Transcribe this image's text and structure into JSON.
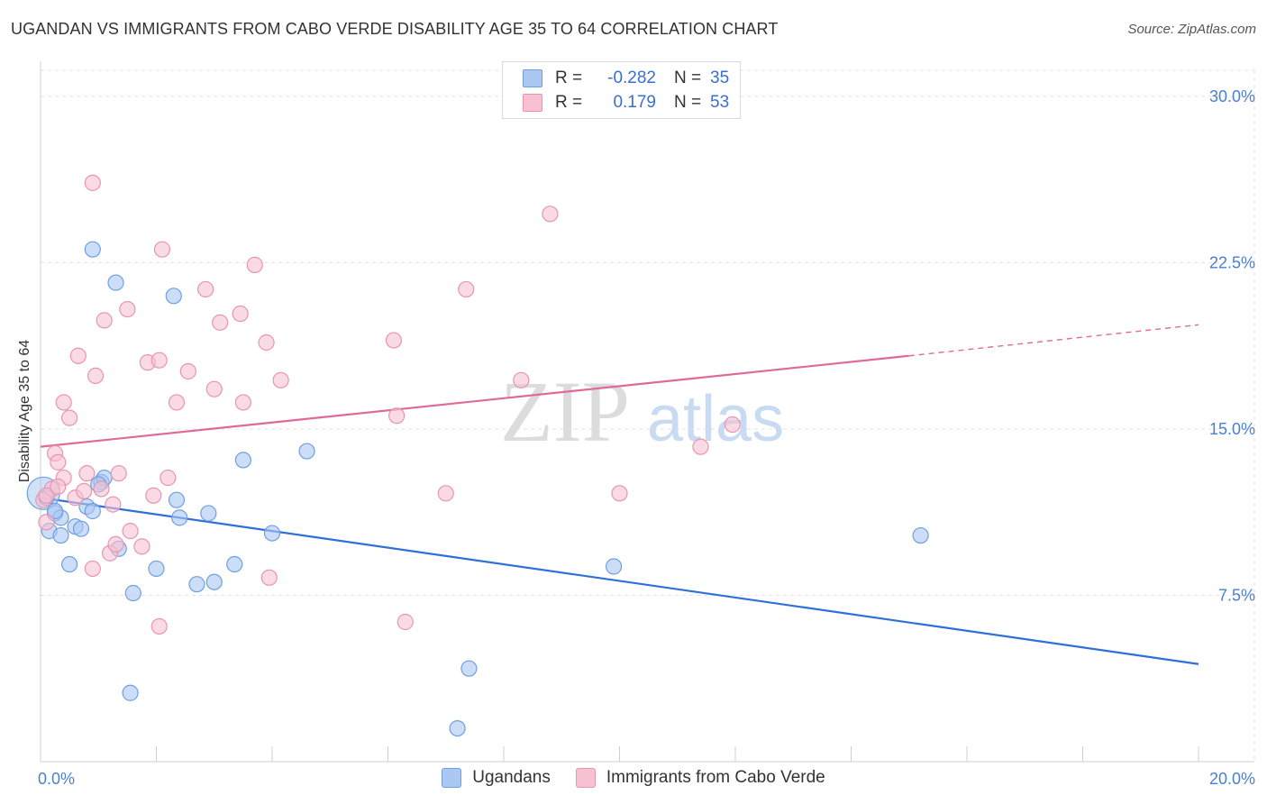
{
  "title": "UGANDAN VS IMMIGRANTS FROM CABO VERDE DISABILITY AGE 35 TO 64 CORRELATION CHART",
  "source": "Source: ZipAtlas.com",
  "watermark": {
    "zip": "ZIP",
    "atlas": "atlas"
  },
  "legend": {
    "rows": [
      {
        "r_label": "R =",
        "r_value": "-0.282",
        "n_label": "N =",
        "n_value": "35",
        "color": "#aac8f2",
        "border": "#6f9fe0"
      },
      {
        "r_label": "R =",
        "r_value": "0.179",
        "n_label": "N =",
        "n_value": "53",
        "color": "#f7c1d2",
        "border": "#e895b0"
      }
    ]
  },
  "bottom_legend": [
    {
      "label": "Ugandans",
      "color": "#aac8f2",
      "border": "#6f9fe0"
    },
    {
      "label": "Immigrants from Cabo Verde",
      "color": "#f7c1d2",
      "border": "#e895b0"
    }
  ],
  "chart_data": {
    "type": "scatter",
    "xlabel": "",
    "ylabel": "Disability Age 35 to 64",
    "xlim": [
      0,
      20
    ],
    "ylim": [
      0,
      31.5
    ],
    "x_tick_labels": [
      {
        "value": 0,
        "label": "0.0%"
      },
      {
        "value": 20,
        "label": "20.0%"
      }
    ],
    "y_tick_labels": [
      {
        "value": 7.5,
        "label": "7.5%"
      },
      {
        "value": 15,
        "label": "15.0%"
      },
      {
        "value": 22.5,
        "label": "22.5%"
      },
      {
        "value": 30,
        "label": "30.0%"
      }
    ],
    "x_minor_ticks": [
      2,
      4,
      6,
      8,
      10,
      12,
      14,
      16,
      18,
      20
    ],
    "grid": true,
    "series": [
      {
        "name": "Ugandans",
        "color": "#6f9fe0",
        "fill": "#aac8f2",
        "points": [
          [
            0.05,
            12.1
          ],
          [
            0.1,
            11.9
          ],
          [
            0.15,
            10.4
          ],
          [
            0.25,
            11.2
          ],
          [
            0.35,
            10.2
          ],
          [
            0.35,
            11.0
          ],
          [
            0.5,
            8.9
          ],
          [
            0.6,
            10.6
          ],
          [
            0.7,
            10.5
          ],
          [
            0.8,
            11.5
          ],
          [
            0.9,
            11.3
          ],
          [
            1.05,
            12.6
          ],
          [
            1.1,
            12.8
          ],
          [
            1.35,
            9.6
          ],
          [
            1.55,
            3.1
          ],
          [
            1.6,
            7.6
          ],
          [
            2.0,
            8.7
          ],
          [
            2.3,
            21.0
          ],
          [
            2.35,
            11.8
          ],
          [
            2.4,
            11.0
          ],
          [
            2.7,
            8.0
          ],
          [
            2.9,
            11.2
          ],
          [
            3.0,
            8.1
          ],
          [
            3.35,
            8.9
          ],
          [
            3.5,
            13.6
          ],
          [
            4.0,
            10.3
          ],
          [
            4.6,
            14.0
          ],
          [
            0.9,
            23.1
          ],
          [
            1.3,
            21.6
          ],
          [
            7.4,
            4.2
          ],
          [
            7.2,
            1.5
          ],
          [
            9.9,
            8.8
          ],
          [
            15.2,
            10.2
          ],
          [
            0.25,
            11.3
          ],
          [
            1.0,
            12.5
          ]
        ],
        "trend": {
          "x0": 0,
          "y0": 11.9,
          "x1": 20,
          "y1": 4.4
        }
      },
      {
        "name": "Immigrants from Cabo Verde",
        "color": "#e895b0",
        "fill": "#f7c1d2",
        "points": [
          [
            0.05,
            11.8
          ],
          [
            0.1,
            10.8
          ],
          [
            0.2,
            12.3
          ],
          [
            0.25,
            13.9
          ],
          [
            0.3,
            13.5
          ],
          [
            0.4,
            12.8
          ],
          [
            0.4,
            16.2
          ],
          [
            0.5,
            15.5
          ],
          [
            0.6,
            11.9
          ],
          [
            0.65,
            18.3
          ],
          [
            0.75,
            12.2
          ],
          [
            0.8,
            13.0
          ],
          [
            0.9,
            8.7
          ],
          [
            0.9,
            26.1
          ],
          [
            0.95,
            17.4
          ],
          [
            1.05,
            12.3
          ],
          [
            1.1,
            19.9
          ],
          [
            1.2,
            9.4
          ],
          [
            1.25,
            11.6
          ],
          [
            1.3,
            9.8
          ],
          [
            1.35,
            13.0
          ],
          [
            1.5,
            20.4
          ],
          [
            1.55,
            10.4
          ],
          [
            1.75,
            9.7
          ],
          [
            1.85,
            18.0
          ],
          [
            1.95,
            12.0
          ],
          [
            2.05,
            18.1
          ],
          [
            2.05,
            6.1
          ],
          [
            2.1,
            23.1
          ],
          [
            2.2,
            12.8
          ],
          [
            2.35,
            16.2
          ],
          [
            2.55,
            17.6
          ],
          [
            2.85,
            21.3
          ],
          [
            3.0,
            16.8
          ],
          [
            3.1,
            19.8
          ],
          [
            3.45,
            20.2
          ],
          [
            3.5,
            16.2
          ],
          [
            3.7,
            22.4
          ],
          [
            3.9,
            18.9
          ],
          [
            3.95,
            8.3
          ],
          [
            4.15,
            17.2
          ],
          [
            6.1,
            19.0
          ],
          [
            6.15,
            15.6
          ],
          [
            6.3,
            6.3
          ],
          [
            7.0,
            12.1
          ],
          [
            7.35,
            21.3
          ],
          [
            8.3,
            17.2
          ],
          [
            8.8,
            24.7
          ],
          [
            10.0,
            12.1
          ],
          [
            11.4,
            14.2
          ],
          [
            11.95,
            15.2
          ],
          [
            0.1,
            12.0
          ],
          [
            0.3,
            12.4
          ]
        ],
        "trend": {
          "x0": 0,
          "y0": 14.2,
          "x1": 15,
          "y1": 18.3,
          "dash_to_x": 20,
          "dash_to_y": 19.7
        }
      }
    ]
  }
}
